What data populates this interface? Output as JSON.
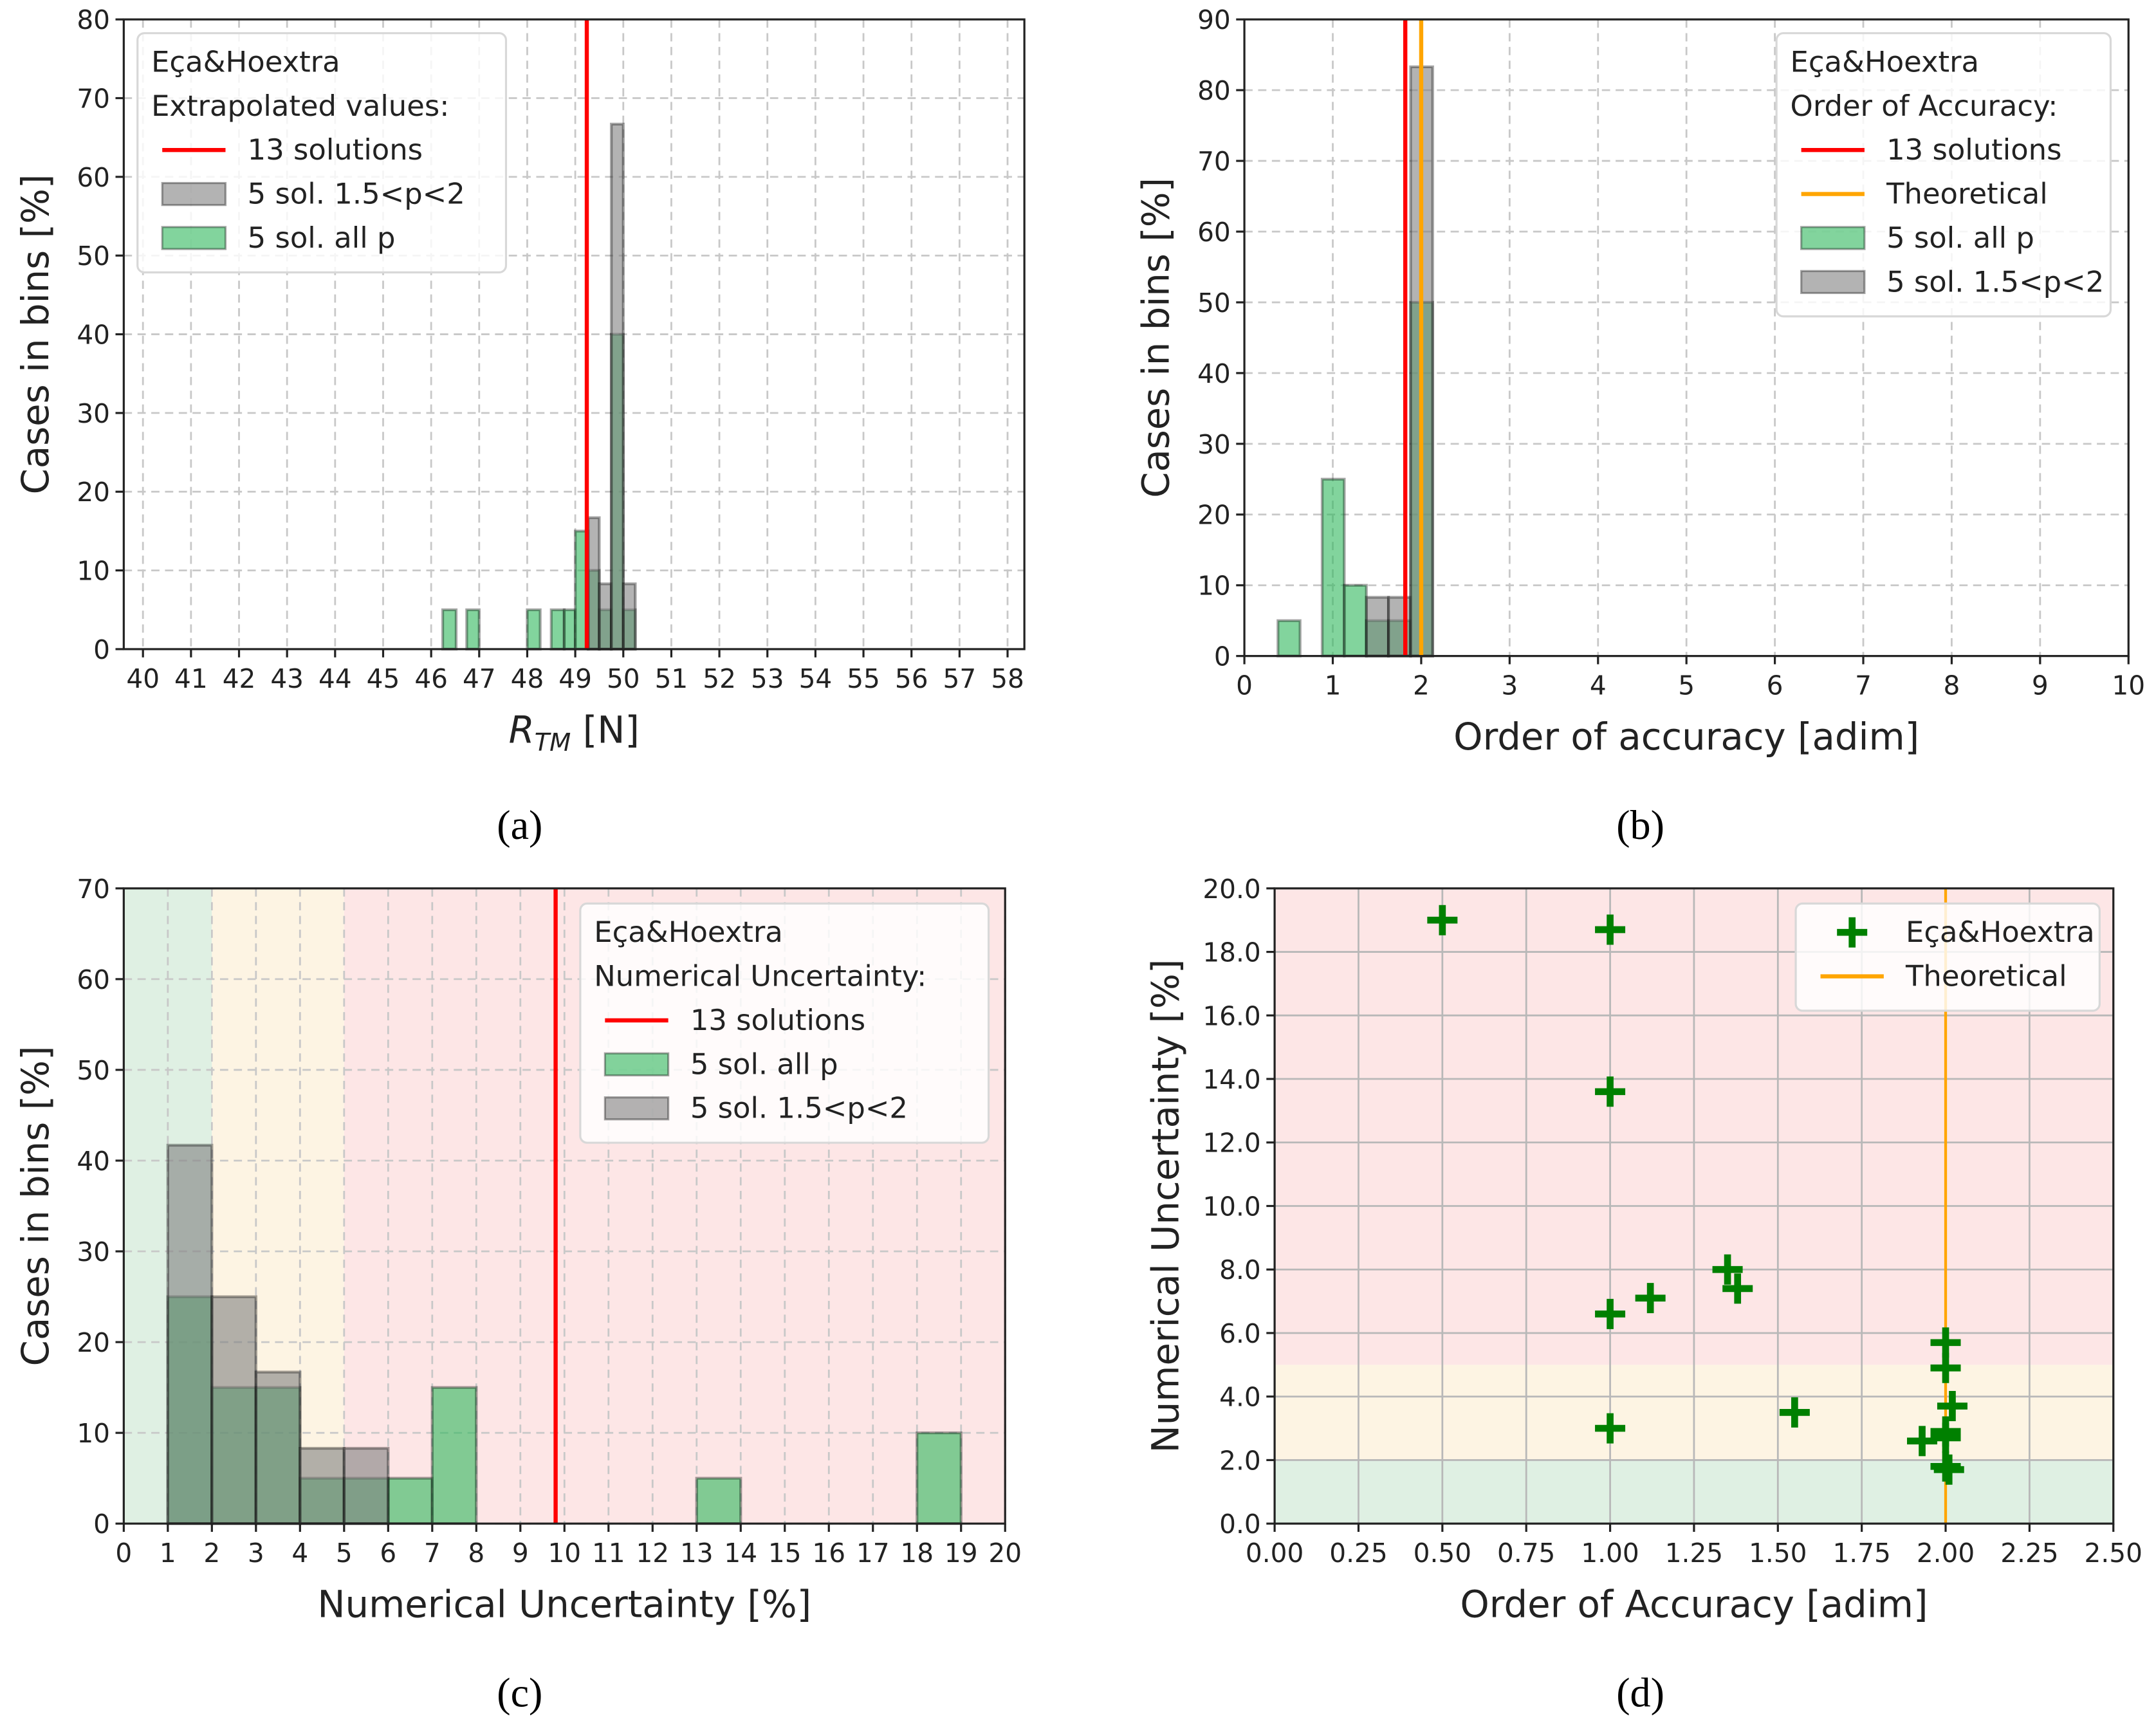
{
  "chart_data": [
    {
      "type": "bar",
      "panel_label": "(a)",
      "title": "",
      "xlabel": "R",
      "xlabel_sub": "TM",
      "xlabel_rest": " [N]",
      "ylabel": "Cases in bins [%]",
      "xlim": [
        39.6,
        58.35
      ],
      "ylim": [
        0,
        80
      ],
      "xticks": [
        40,
        41,
        42,
        43,
        44,
        45,
        46,
        47,
        48,
        49,
        50,
        51,
        52,
        53,
        54,
        55,
        56,
        57,
        58
      ],
      "xtick_labels": [
        "40",
        "41",
        "42",
        "43",
        "44",
        "45",
        "46",
        "47",
        "48",
        "49",
        "50",
        "51",
        "52",
        "53",
        "54",
        "55",
        "56",
        "57",
        "58"
      ],
      "yticks": [
        0,
        10,
        20,
        30,
        40,
        50,
        60,
        70,
        80
      ],
      "ytick_labels": [
        "0",
        "10",
        "20",
        "30",
        "40",
        "50",
        "60",
        "70",
        "80"
      ],
      "grid": "dashed",
      "bands": [],
      "series": [
        {
          "name": "5 sol. all p",
          "color": "#2eb85c",
          "bins": [
            [
              46.24,
              46.52,
              5
            ],
            [
              46.74,
              47.0,
              5
            ],
            [
              48.0,
              48.27,
              5
            ],
            [
              48.5,
              48.77,
              5
            ],
            [
              48.77,
              49.0,
              5
            ],
            [
              49.0,
              49.27,
              15
            ],
            [
              49.27,
              49.5,
              10
            ],
            [
              49.5,
              49.75,
              5
            ],
            [
              49.75,
              50.0,
              40
            ],
            [
              50.0,
              50.25,
              5
            ]
          ]
        },
        {
          "name": "5 sol. 1.5<p<2",
          "color": "#808080",
          "bins": [
            [
              49.27,
              49.5,
              16.7
            ],
            [
              49.5,
              49.75,
              8.3
            ],
            [
              49.75,
              50.0,
              66.7
            ],
            [
              50.0,
              50.25,
              8.3
            ]
          ]
        }
      ],
      "vlines": [
        {
          "name": "13 solutions",
          "x": 49.24,
          "color": "#ff0000"
        }
      ],
      "legend": {
        "placement": "top-left",
        "title": [
          "Eça&Hoextra",
          "Extrapolated values:"
        ],
        "entries": [
          {
            "label": "13 solutions",
            "kind": "line",
            "color": "#ff0000"
          },
          {
            "label": "5 sol. 1.5<p<2",
            "kind": "patch",
            "color": "#808080"
          },
          {
            "label": "5 sol. all p",
            "kind": "patch",
            "color": "#2eb85c"
          }
        ]
      }
    },
    {
      "type": "bar",
      "panel_label": "(b)",
      "title": "",
      "xlabel": "Order of accuracy [adim]",
      "ylabel": "Cases in bins [%]",
      "xlim": [
        0,
        10
      ],
      "ylim": [
        0,
        90
      ],
      "xticks": [
        0,
        1,
        2,
        3,
        4,
        5,
        6,
        7,
        8,
        9,
        10
      ],
      "xtick_labels": [
        "0",
        "1",
        "2",
        "3",
        "4",
        "5",
        "6",
        "7",
        "8",
        "9",
        "10"
      ],
      "yticks": [
        0,
        10,
        20,
        30,
        40,
        50,
        60,
        70,
        80,
        90
      ],
      "ytick_labels": [
        "0",
        "10",
        "20",
        "30",
        "40",
        "50",
        "60",
        "70",
        "80",
        "90"
      ],
      "grid": "dashed",
      "bands": [],
      "series": [
        {
          "name": "5 sol. all p",
          "color": "#2eb85c",
          "bins": [
            [
              0.38,
              0.63,
              5
            ],
            [
              0.88,
              1.13,
              25
            ],
            [
              1.13,
              1.38,
              10
            ],
            [
              1.38,
              1.63,
              5
            ],
            [
              1.63,
              1.88,
              5
            ],
            [
              1.88,
              2.13,
              50
            ]
          ]
        },
        {
          "name": "5 sol. 1.5<p<2",
          "color": "#808080",
          "bins": [
            [
              1.38,
              1.63,
              8.3
            ],
            [
              1.63,
              1.88,
              8.3
            ],
            [
              1.88,
              2.13,
              83.3
            ]
          ]
        }
      ],
      "vlines": [
        {
          "name": "13 solutions",
          "x": 1.82,
          "color": "#ff0000"
        },
        {
          "name": "Theoretical",
          "x": 2.0,
          "color": "#ffa500"
        }
      ],
      "legend": {
        "placement": "top-right",
        "title": [
          "Eça&Hoextra",
          "Order of Accuracy:"
        ],
        "entries": [
          {
            "label": "13 solutions",
            "kind": "line",
            "color": "#ff0000"
          },
          {
            "label": "Theoretical",
            "kind": "line",
            "color": "#ffa500"
          },
          {
            "label": "5 sol. all p",
            "kind": "patch",
            "color": "#2eb85c"
          },
          {
            "label": "5 sol. 1.5<p<2",
            "kind": "patch",
            "color": "#808080"
          }
        ]
      }
    },
    {
      "type": "bar",
      "panel_label": "(c)",
      "title": "",
      "xlabel": "Numerical Uncertainty [%]",
      "ylabel": "Cases in bins [%]",
      "xlim": [
        0,
        20
      ],
      "ylim": [
        0,
        70
      ],
      "xticks": [
        0,
        1,
        2,
        3,
        4,
        5,
        6,
        7,
        8,
        9,
        10,
        11,
        12,
        13,
        14,
        15,
        16,
        17,
        18,
        19,
        20
      ],
      "xtick_labels": [
        "0",
        "1",
        "2",
        "3",
        "4",
        "5",
        "6",
        "7",
        "8",
        "9",
        "10",
        "11",
        "12",
        "13",
        "14",
        "15",
        "16",
        "17",
        "18",
        "19",
        "20"
      ],
      "yticks": [
        0,
        10,
        20,
        30,
        40,
        50,
        60,
        70
      ],
      "ytick_labels": [
        "0",
        "10",
        "20",
        "30",
        "40",
        "50",
        "60",
        "70"
      ],
      "grid": "dashed",
      "bands": [
        {
          "from": 0,
          "to": 2,
          "color": "#dff0e3"
        },
        {
          "from": 2,
          "to": 5,
          "color": "#fdf4e3"
        },
        {
          "from": 5,
          "to": 20,
          "color": "#fde6e6"
        }
      ],
      "series": [
        {
          "name": "5 sol. all p",
          "color": "#2eb85c",
          "bins": [
            [
              1,
              2,
              25
            ],
            [
              2,
              3,
              15
            ],
            [
              3,
              4,
              15
            ],
            [
              4,
              5,
              5
            ],
            [
              5,
              6,
              5
            ],
            [
              6,
              7,
              5
            ],
            [
              7,
              8,
              15
            ],
            [
              13,
              14,
              5
            ],
            [
              18,
              19,
              10
            ]
          ]
        },
        {
          "name": "5 sol. 1.5<p<2",
          "color": "#808080",
          "bins": [
            [
              1,
              2,
              41.7
            ],
            [
              2,
              3,
              25
            ],
            [
              3,
              4,
              16.7
            ],
            [
              4,
              5,
              8.3
            ],
            [
              5,
              6,
              8.3
            ]
          ]
        }
      ],
      "vlines": [
        {
          "name": "13 solutions",
          "x": 9.8,
          "color": "#ff0000"
        }
      ],
      "legend": {
        "placement": "top-right",
        "title": [
          "Eça&Hoextra",
          "Numerical Uncertainty:"
        ],
        "entries": [
          {
            "label": "13 solutions",
            "kind": "line",
            "color": "#ff0000"
          },
          {
            "label": "5 sol. all p",
            "kind": "patch",
            "color": "#2eb85c"
          },
          {
            "label": "5 sol. 1.5<p<2",
            "kind": "patch",
            "color": "#808080"
          }
        ]
      }
    },
    {
      "type": "scatter",
      "panel_label": "(d)",
      "title": "",
      "xlabel": "Order of Accuracy [adim]",
      "ylabel": "Numerical Uncertainty [%]",
      "xlim": [
        0,
        2.5
      ],
      "ylim": [
        0,
        20
      ],
      "xticks": [
        0,
        0.25,
        0.5,
        0.75,
        1,
        1.25,
        1.5,
        1.75,
        2,
        2.25,
        2.5
      ],
      "xtick_labels": [
        "0.00",
        "0.25",
        "0.50",
        "0.75",
        "1.00",
        "1.25",
        "1.50",
        "1.75",
        "2.00",
        "2.25",
        "2.50"
      ],
      "yticks": [
        0,
        2,
        4,
        6,
        8,
        10,
        12,
        14,
        16,
        18,
        20
      ],
      "ytick_labels": [
        "0.0",
        "2.0",
        "4.0",
        "6.0",
        "8.0",
        "10.0",
        "12.0",
        "14.0",
        "16.0",
        "18.0",
        "20.0"
      ],
      "grid": "solid",
      "bands": [
        {
          "from": 0,
          "to": 2,
          "color": "#dff0e3",
          "axis": "y"
        },
        {
          "from": 2,
          "to": 5,
          "color": "#fdf4e3",
          "axis": "y"
        },
        {
          "from": 5,
          "to": 20,
          "color": "#fde6e6",
          "axis": "y"
        }
      ],
      "series": [
        {
          "name": "Eça&Hoextra",
          "color": "#008000",
          "marker": "plus",
          "points": [
            [
              0.5,
              19.0
            ],
            [
              1.0,
              18.7
            ],
            [
              1.0,
              13.6
            ],
            [
              1.0,
              6.6
            ],
            [
              1.12,
              7.1
            ],
            [
              1.35,
              8.0
            ],
            [
              1.38,
              7.4
            ],
            [
              1.0,
              3.0
            ],
            [
              1.55,
              3.5
            ],
            [
              2.0,
              5.7
            ],
            [
              2.0,
              4.9
            ],
            [
              2.02,
              3.7
            ],
            [
              2.0,
              2.9
            ],
            [
              2.0,
              2.7
            ],
            [
              1.93,
              2.6
            ],
            [
              2.0,
              1.8
            ],
            [
              2.01,
              1.7
            ]
          ]
        }
      ],
      "vlines": [
        {
          "name": "Theoretical",
          "x": 2.0,
          "color": "#ffa500"
        }
      ],
      "legend": {
        "placement": "top-right",
        "title": [],
        "entries": [
          {
            "label": "Eça&Hoextra",
            "kind": "plus",
            "color": "#008000"
          },
          {
            "label": "Theoretical",
            "kind": "line",
            "color": "#ffa500"
          }
        ]
      }
    }
  ]
}
